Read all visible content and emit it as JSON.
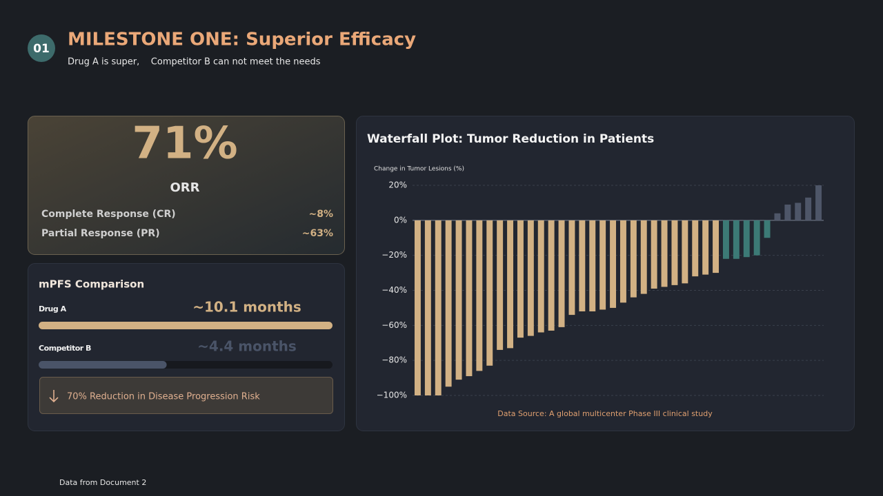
{
  "header": {
    "badge": "01",
    "title": "MILESTONE ONE: Superior Efficacy",
    "subtitle": "Drug A is super,    Competitor B can not meet the needs"
  },
  "orr": {
    "value": "71%",
    "label": "ORR",
    "rows": [
      [
        "Complete Response (CR)",
        "~8%"
      ],
      [
        "Partial Response (PR)",
        "~63%"
      ]
    ]
  },
  "mpfs": {
    "type": "bar",
    "title": "mPFS Comparison",
    "categories": [
      "Drug A",
      "Competitor B"
    ],
    "values": [
      10.1,
      4.4
    ],
    "value_labels": [
      "~10.1 months",
      "~4.4 months"
    ],
    "colors": [
      "#d2b184",
      "#4a5468"
    ],
    "xlim": [
      0,
      10.1
    ],
    "callout": "70% Reduction in Disease Progression Risk"
  },
  "chart_data": {
    "type": "bar",
    "title": "Waterfall Plot: Tumor Reduction in Patients",
    "y_label": "Change in Tumor Lesions (%)",
    "note": "Data Source: A global multicenter Phase III clinical study",
    "values": [
      -100,
      -100,
      -100,
      -95,
      -91,
      -89,
      -86,
      -83,
      -74,
      -73,
      -67,
      -66,
      -64,
      -63,
      -61,
      -54,
      -52,
      -52,
      -51,
      -50,
      -47,
      -44,
      -42,
      -39,
      -38,
      -37,
      -36,
      -32,
      -31,
      -30,
      -22,
      -22,
      -21,
      -20,
      -10,
      4,
      9,
      10,
      13,
      20
    ],
    "colors": [
      "#d2b184",
      "#d2b184",
      "#d2b184",
      "#d2b184",
      "#d2b184",
      "#d2b184",
      "#d2b184",
      "#d2b184",
      "#d2b184",
      "#d2b184",
      "#d2b184",
      "#d2b184",
      "#d2b184",
      "#d2b184",
      "#d2b184",
      "#d2b184",
      "#d2b184",
      "#d2b184",
      "#d2b184",
      "#d2b184",
      "#d2b184",
      "#d2b184",
      "#d2b184",
      "#d2b184",
      "#d2b184",
      "#d2b184",
      "#d2b184",
      "#d2b184",
      "#d2b184",
      "#d2b184",
      "#3c7a76",
      "#3c7a76",
      "#3c7a76",
      "#3c7a76",
      "#3c7a76",
      "#4e5668",
      "#4e5668",
      "#4e5668",
      "#4e5668",
      "#4e5668"
    ],
    "ylim": [
      -100,
      20
    ],
    "yticks": [
      {
        "value": 20,
        "label": "20%"
      },
      {
        "value": 0,
        "label": "0%"
      },
      {
        "value": -20,
        "label": "−20%"
      },
      {
        "value": -40,
        "label": "−40%"
      },
      {
        "value": -60,
        "label": "−60%"
      },
      {
        "value": -80,
        "label": "−80%"
      },
      {
        "value": -100,
        "label": "−100%"
      }
    ],
    "grid": true
  },
  "footer": "Data from Document 2"
}
